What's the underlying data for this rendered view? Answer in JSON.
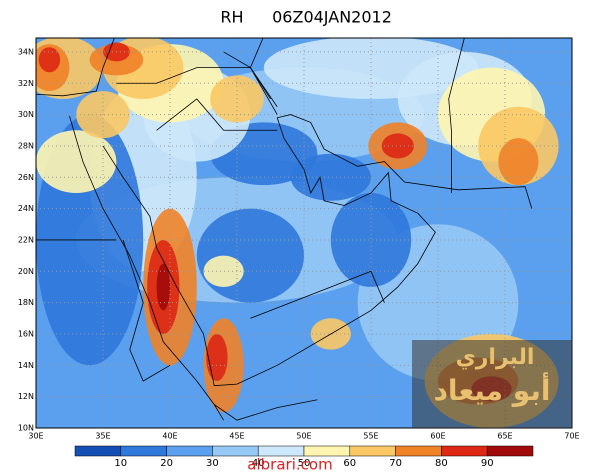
{
  "title": "RH",
  "timestamp": "06Z04JAN2012",
  "lat_labels": [
    "34N",
    "32N",
    "30N",
    "28N",
    "26N",
    "24N",
    "22N",
    "20N",
    "18N",
    "16N",
    "14N",
    "12N",
    "10N"
  ],
  "lon_labels": [
    "30E",
    "35E",
    "40E",
    "45E",
    "50E",
    "55E",
    "60E",
    "65E",
    "70E"
  ],
  "colorbar": {
    "levels": [
      10,
      20,
      30,
      40,
      50,
      60,
      70,
      80,
      90
    ],
    "colors": [
      "#1450b4",
      "#2f78dc",
      "#5aa0ee",
      "#96c8f5",
      "#cde8fa",
      "#fff5b0",
      "#fac864",
      "#f08228",
      "#dc2814",
      "#a00a0a"
    ]
  },
  "watermark": "albrari.com",
  "logo": {
    "line1": "البراري",
    "line2": "أبو ميعاد"
  }
}
